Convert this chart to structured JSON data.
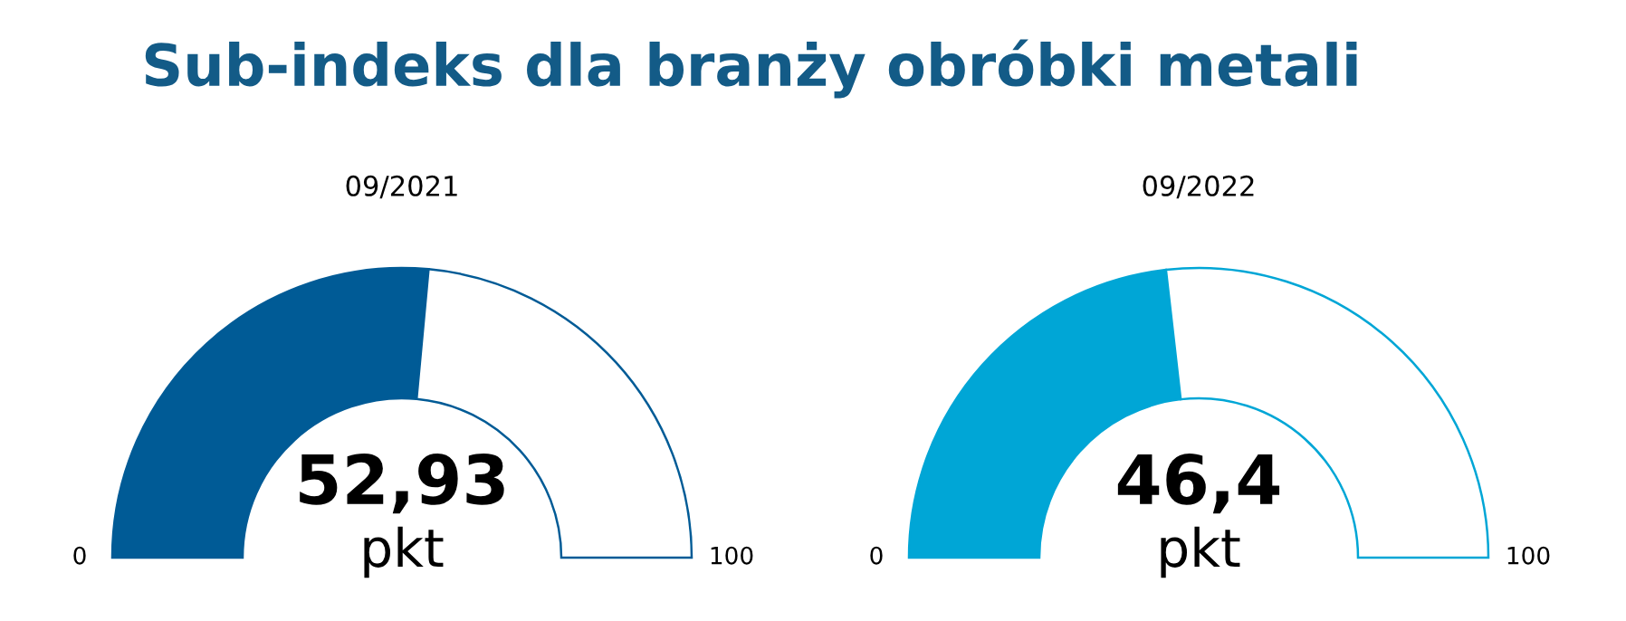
{
  "chart_data": [
    {
      "type": "donut",
      "title": "Sub-indeks dla branży obróbki metali",
      "subtitle": "09/2021",
      "categories": [
        null,
        null
      ],
      "values": [
        52.93,
        47.07
      ],
      "value_labels": [
        "52,93",
        null
      ],
      "colors": [
        "#005b96",
        "#ffffff"
      ],
      "annotations": [
        "pkt",
        "0",
        "100"
      ]
    },
    {
      "type": "donut",
      "subtitle": "09/2022",
      "categories": [
        null,
        null
      ],
      "values": [
        46.4,
        53.6
      ],
      "value_labels": [
        "46,4",
        null
      ],
      "colors": [
        "#00a6d6",
        "#ffffff"
      ],
      "annotations": [
        "pkt",
        "0",
        "100"
      ]
    }
  ]
}
